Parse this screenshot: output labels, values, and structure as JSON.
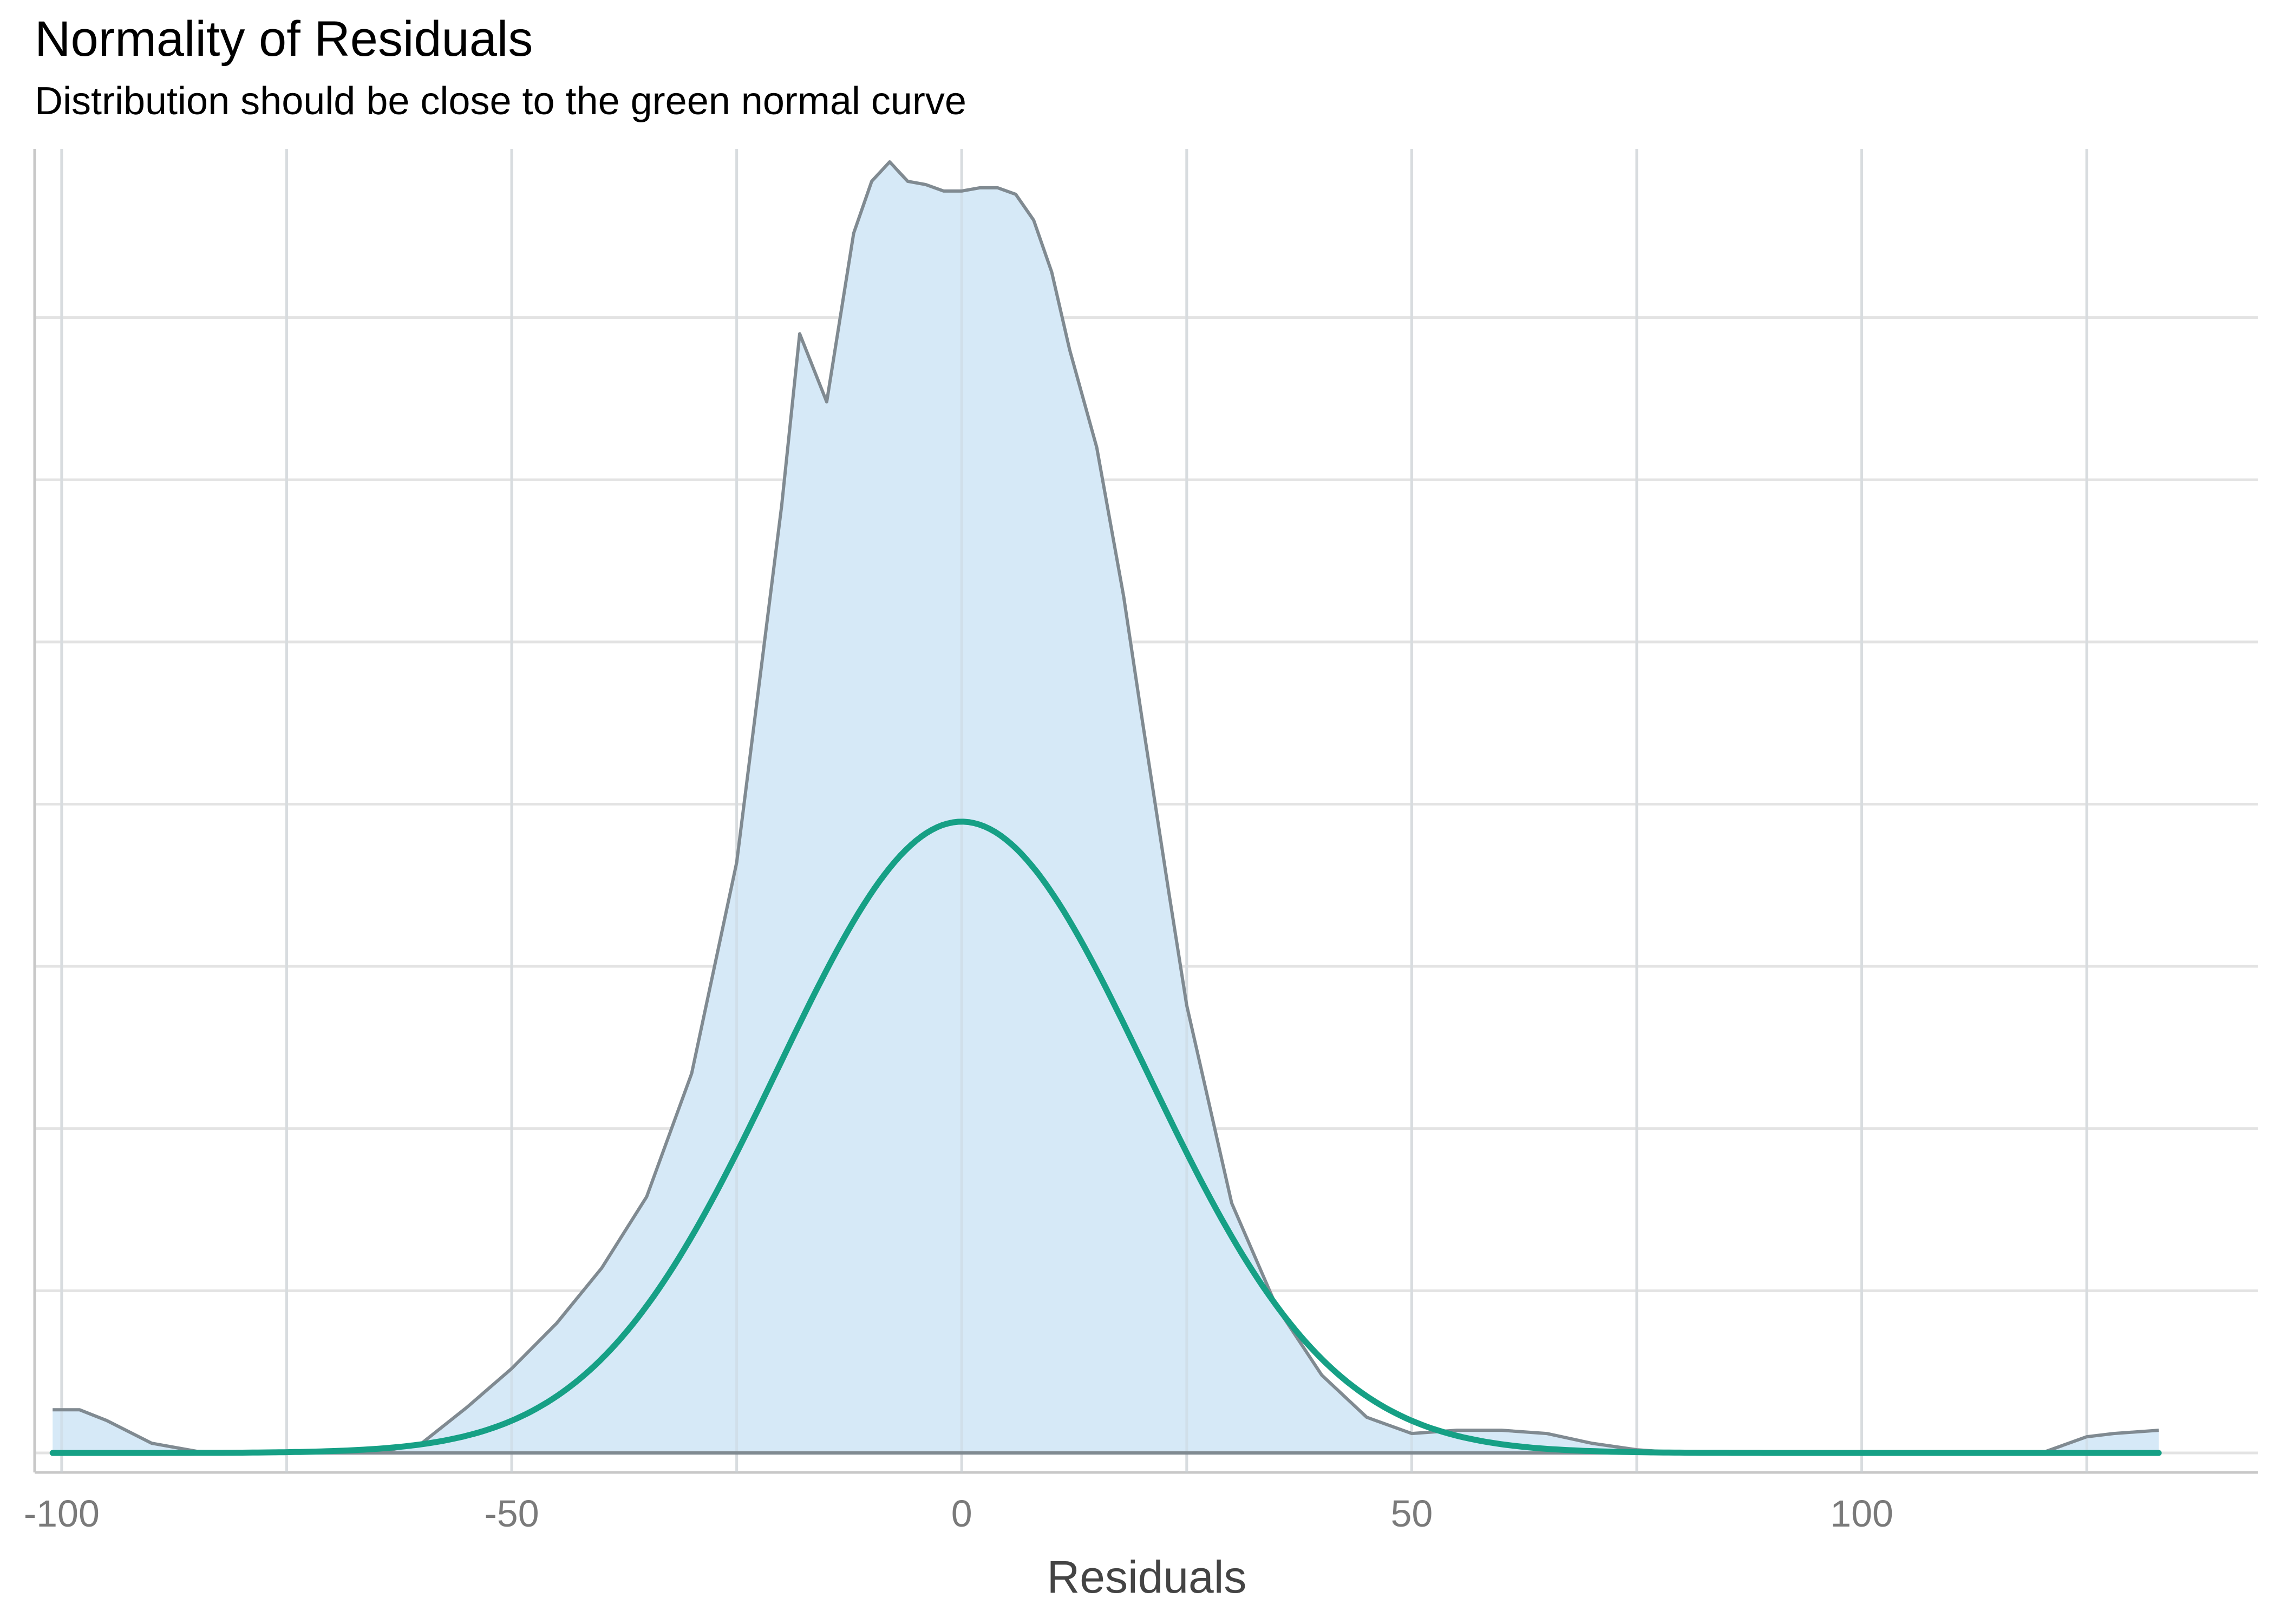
{
  "chart_data": {
    "type": "area",
    "title": "Normality of Residuals",
    "subtitle": "Distribution should be close to the green normal curve",
    "xlabel": "Residuals",
    "ylabel": "",
    "xlim": [
      -103,
      144
    ],
    "ylim": [
      -0.0006,
      0.0402
    ],
    "x_ticks": [
      -100,
      -50,
      0,
      50,
      100
    ],
    "x_tick_labels": [
      "-100",
      "-50",
      "0",
      "50",
      "100"
    ],
    "y_gridlines": [
      0,
      0.005,
      0.01,
      0.015,
      0.02,
      0.025,
      0.03,
      0.035
    ],
    "y_tick_labels_shown": false,
    "grid": true,
    "legend": "none",
    "series": [
      {
        "kind": "density-area",
        "color": "#808a91",
        "fill": "#d6e9f7",
        "x": [
          -101,
          -98,
          -95,
          -90,
          -85,
          -80,
          -75,
          -70,
          -65,
          -60,
          -55,
          -50,
          -45,
          -40,
          -35,
          -30,
          -25,
          -20,
          -18,
          -15,
          -12,
          -10,
          -8,
          -6,
          -4,
          -2,
          0,
          2,
          4,
          6,
          8,
          10,
          12,
          15,
          18,
          20,
          23,
          25,
          30,
          35,
          40,
          45,
          50,
          55,
          60,
          65,
          70,
          75,
          80,
          85,
          90,
          95,
          100,
          105,
          110,
          115,
          120,
          125,
          128,
          133
        ],
        "y": [
          0.00133,
          0.00133,
          0.001,
          0.0003,
          5e-05,
          0.0,
          0.0,
          0.0,
          0.0,
          0.0003,
          0.0014,
          0.0026,
          0.004,
          0.0057,
          0.0079,
          0.0117,
          0.0182,
          0.0292,
          0.0345,
          0.0324,
          0.0376,
          0.0392,
          0.0398,
          0.0392,
          0.0391,
          0.0389,
          0.0389,
          0.039,
          0.039,
          0.0388,
          0.038,
          0.0364,
          0.034,
          0.031,
          0.0264,
          0.0227,
          0.0173,
          0.0138,
          0.0077,
          0.0045,
          0.0024,
          0.0011,
          0.0006,
          0.0007,
          0.0007,
          0.0006,
          0.0003,
          0.0001,
          0.0,
          0.0,
          0.0,
          0.0,
          0.0,
          0.0,
          0.0,
          0.0,
          0.0,
          0.0005,
          0.0006,
          0.0007
        ]
      },
      {
        "kind": "normal-curve",
        "color": "#16a085",
        "mean": 0,
        "sd": 20.5,
        "x_range": [
          -101,
          133
        ]
      }
    ]
  }
}
